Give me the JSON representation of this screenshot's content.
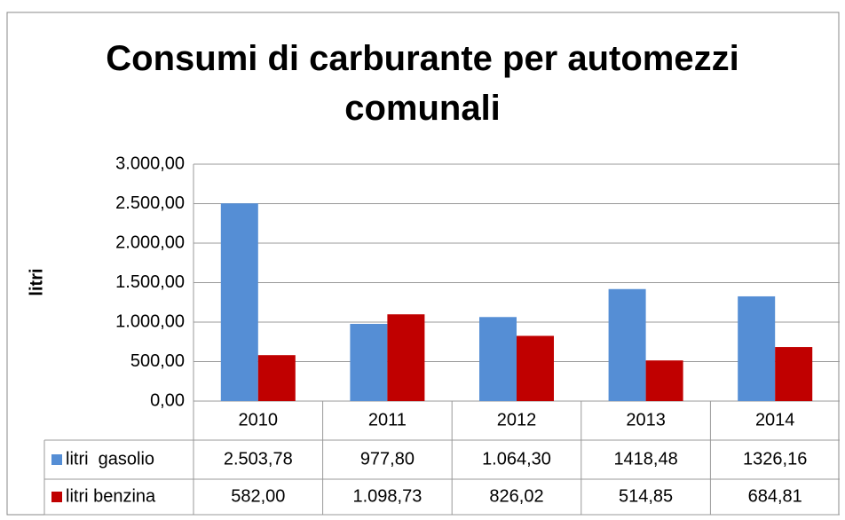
{
  "chart_data": {
    "type": "bar",
    "title": "Consumi di carburante per automezzi comunali",
    "y_label": "litri",
    "categories": [
      "2010",
      "2011",
      "2012",
      "2013",
      "2014"
    ],
    "series": [
      {
        "name": "litri  gasolio",
        "color": "#558ed5",
        "values": [
          2503.78,
          977.8,
          1064.3,
          1418.48,
          1326.16
        ],
        "value_labels": [
          "2.503,78",
          "977,80",
          "1.064,30",
          "1418,48",
          "1326,16"
        ]
      },
      {
        "name": "litri benzina",
        "color": "#c00000",
        "values": [
          582.0,
          1098.73,
          826.02,
          514.85,
          684.81
        ],
        "value_labels": [
          "582,00",
          "1.098,73",
          "826,02",
          "514,85",
          "684,81"
        ]
      }
    ],
    "ylim": [
      0,
      3000
    ],
    "yticks": [
      {
        "value": 0,
        "label": "0,00"
      },
      {
        "value": 500,
        "label": "500,00"
      },
      {
        "value": 1000,
        "label": "1.000,00"
      },
      {
        "value": 1500,
        "label": "1.500,00"
      },
      {
        "value": 2000,
        "label": "2.000,00"
      },
      {
        "value": 2500,
        "label": "2.500,00"
      },
      {
        "value": 3000,
        "label": "3.000,00"
      }
    ],
    "grid": true
  }
}
